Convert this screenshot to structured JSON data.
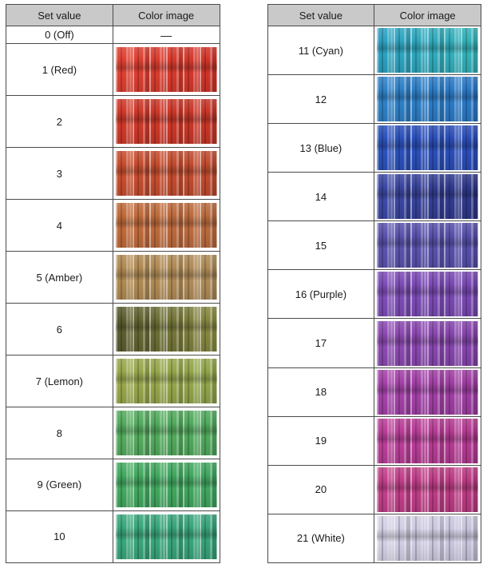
{
  "tables": [
    {
      "name": "left",
      "headers": [
        "Set value",
        "Color image"
      ],
      "rows": [
        {
          "set_value": "0 (Off)",
          "colors": null,
          "placeholder": "—"
        },
        {
          "set_value": "1 (Red)",
          "colors": [
            "#e04233",
            "#cf3327"
          ]
        },
        {
          "set_value": "2",
          "colors": [
            "#d0392a",
            "#c63526"
          ]
        },
        {
          "set_value": "3",
          "colors": [
            "#c84e2f",
            "#bf4a2e"
          ]
        },
        {
          "set_value": "4",
          "colors": [
            "#c06a3a",
            "#b96a3e"
          ]
        },
        {
          "set_value": "5 (Amber)",
          "colors": [
            "#b18a52",
            "#ad8a58"
          ]
        },
        {
          "set_value": "6",
          "colors": [
            "#585a2e",
            "#8a8c42"
          ]
        },
        {
          "set_value": "7 (Lemon)",
          "colors": [
            "#9aa74c",
            "#90a44a"
          ]
        },
        {
          "set_value": "8",
          "colors": [
            "#55ab5e",
            "#4fa95c"
          ]
        },
        {
          "set_value": "9 (Green)",
          "colors": [
            "#43a95f",
            "#3fa55e"
          ]
        },
        {
          "set_value": "10",
          "colors": [
            "#3aa77c",
            "#36a27a"
          ]
        }
      ]
    },
    {
      "name": "right",
      "headers": [
        "Set value",
        "Color image"
      ],
      "rows": [
        {
          "set_value": "11 (Cyan)",
          "colors": [
            "#2aa0c2",
            "#35b3b8"
          ]
        },
        {
          "set_value": "12",
          "colors": [
            "#2e82c8",
            "#2a77c4"
          ]
        },
        {
          "set_value": "13 (Blue)",
          "colors": [
            "#2b52bd",
            "#2a4cb6"
          ]
        },
        {
          "set_value": "14",
          "colors": [
            "#3e4aa8",
            "#2c3584"
          ]
        },
        {
          "set_value": "15",
          "colors": [
            "#5b53ae",
            "#554ea8"
          ]
        },
        {
          "set_value": "16 (Purple)",
          "colors": [
            "#7e4db8",
            "#7747b0"
          ]
        },
        {
          "set_value": "17",
          "colors": [
            "#8c4ab2",
            "#8443aa"
          ]
        },
        {
          "set_value": "18",
          "colors": [
            "#a542aa",
            "#9c3da0"
          ]
        },
        {
          "set_value": "19",
          "colors": [
            "#bb3e99",
            "#b13a90"
          ]
        },
        {
          "set_value": "20",
          "colors": [
            "#c23f8a",
            "#b93a82"
          ]
        },
        {
          "set_value": "21 (White)",
          "colors": [
            "#d6d2e6",
            "#c6c2da"
          ]
        }
      ]
    }
  ]
}
